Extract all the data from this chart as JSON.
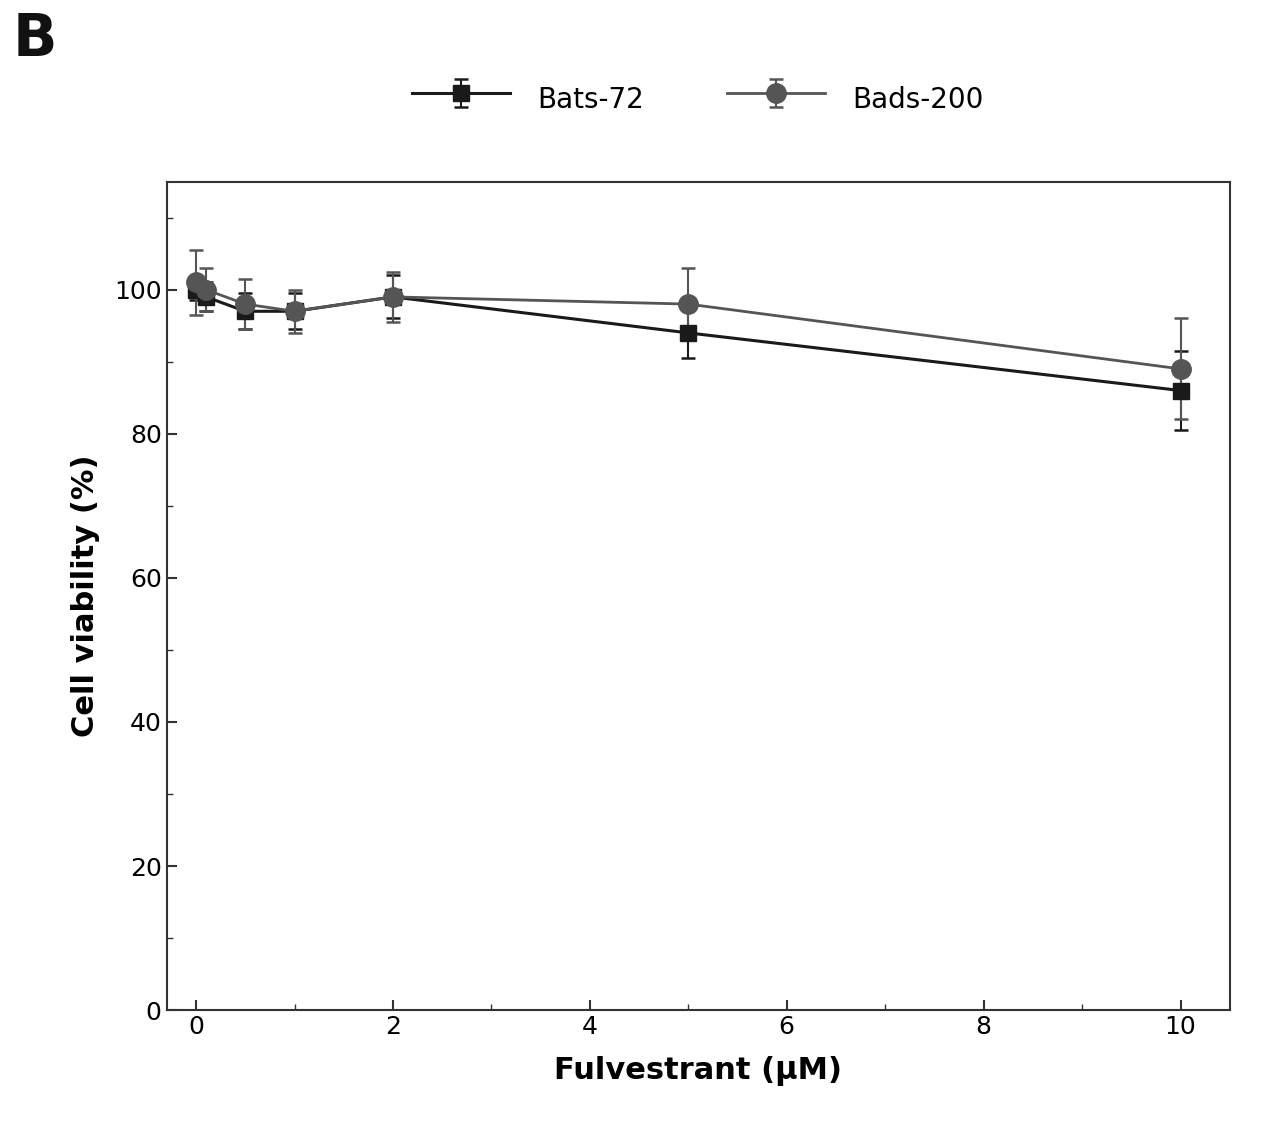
{
  "title_label": "B",
  "xlabel": "Fulvestrant (μM)",
  "ylabel": "Cell viability (%)",
  "xlim": [
    -0.3,
    10.5
  ],
  "ylim": [
    0,
    115
  ],
  "yticks": [
    0,
    20,
    40,
    60,
    80,
    100
  ],
  "xticks": [
    0,
    2,
    4,
    6,
    8,
    10
  ],
  "series": [
    {
      "label": "Bats-72",
      "x": [
        0,
        0.1,
        0.5,
        1,
        2,
        5,
        10
      ],
      "y": [
        100,
        99,
        97,
        97,
        99,
        94,
        86
      ],
      "yerr": [
        1.5,
        2.0,
        2.5,
        2.5,
        3.0,
        3.5,
        5.5
      ],
      "color": "#1a1a1a",
      "marker": "s",
      "markersize": 11,
      "linewidth": 2.2,
      "linestyle": "-"
    },
    {
      "label": "Bads-200",
      "x": [
        0,
        0.1,
        0.5,
        1,
        2,
        5,
        10
      ],
      "y": [
        101,
        100,
        98,
        97,
        99,
        98,
        89
      ],
      "yerr": [
        4.5,
        3.0,
        3.5,
        3.0,
        3.5,
        5.0,
        7.0
      ],
      "color": "#555555",
      "marker": "o",
      "markersize": 14,
      "linewidth": 2.0,
      "linestyle": "-"
    }
  ],
  "background_color": "#ffffff",
  "tick_fontsize": 18,
  "label_fontsize": 22,
  "title_fontsize": 42,
  "legend_fontsize": 20
}
